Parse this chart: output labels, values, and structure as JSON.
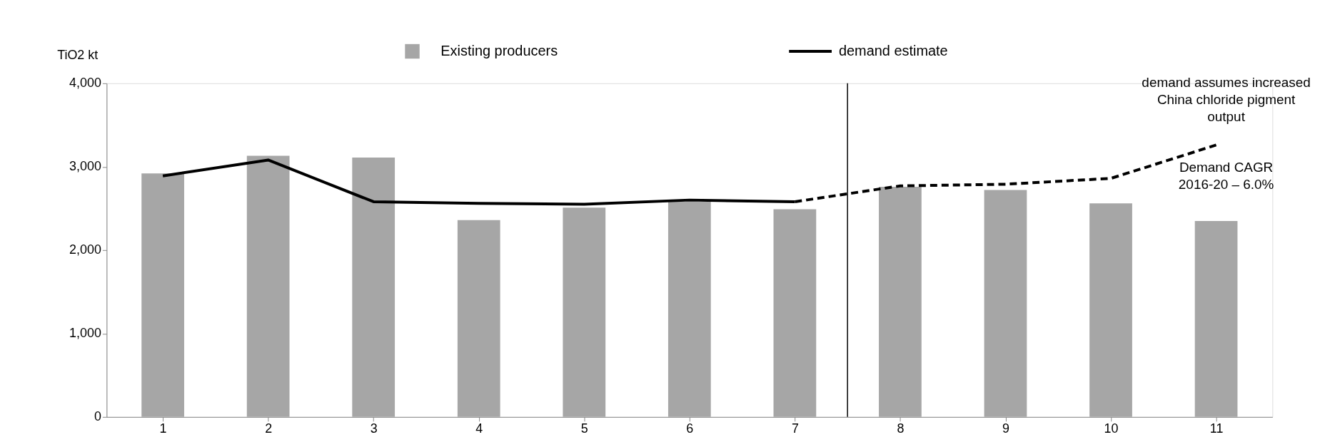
{
  "chart_data": {
    "type": "bar",
    "ylabel": "TiO2 kt",
    "x": [
      1,
      2,
      3,
      4,
      5,
      6,
      7,
      8,
      9,
      10,
      11
    ],
    "xlim": [
      0.5,
      11.5
    ],
    "xticks": [
      1,
      2,
      3,
      4,
      5,
      6,
      7,
      8,
      9,
      10,
      11
    ],
    "ylim": [
      0,
      4000
    ],
    "yticks": [
      0,
      {
        "value": 1000,
        "label": "1,000"
      },
      {
        "value": 2000,
        "label": "2,000"
      },
      {
        "value": 3000,
        "label": "3,000"
      },
      {
        "value": 4000,
        "label": "4,000"
      }
    ],
    "series": [
      {
        "name": "Existing producers",
        "color": "#a6a6a6",
        "values": [
          2920,
          3130,
          3110,
          2360,
          2510,
          2580,
          2490,
          2760,
          2720,
          2560,
          2350
        ]
      },
      {
        "name": "demand estimate",
        "type": "line",
        "color": "#000000",
        "line_style": "solid",
        "values": [
          2890,
          3080,
          2580,
          2560,
          2550,
          2600,
          2580,
          null,
          null,
          null,
          null
        ]
      },
      {
        "type": "line",
        "color": "#000000",
        "line_style": "dashed",
        "values": [
          null,
          null,
          null,
          null,
          null,
          null,
          2580,
          2770,
          2790,
          2860,
          3260
        ]
      }
    ],
    "ref_lines": [
      {
        "axis": "x",
        "value": 7.5,
        "color": "#000000"
      }
    ],
    "annotations": [
      "demand assumes increased China chloride pigment output",
      "Demand CAGR 2016-20 – 6.0%"
    ],
    "legend": "top",
    "grid": false,
    "marker": "none"
  }
}
